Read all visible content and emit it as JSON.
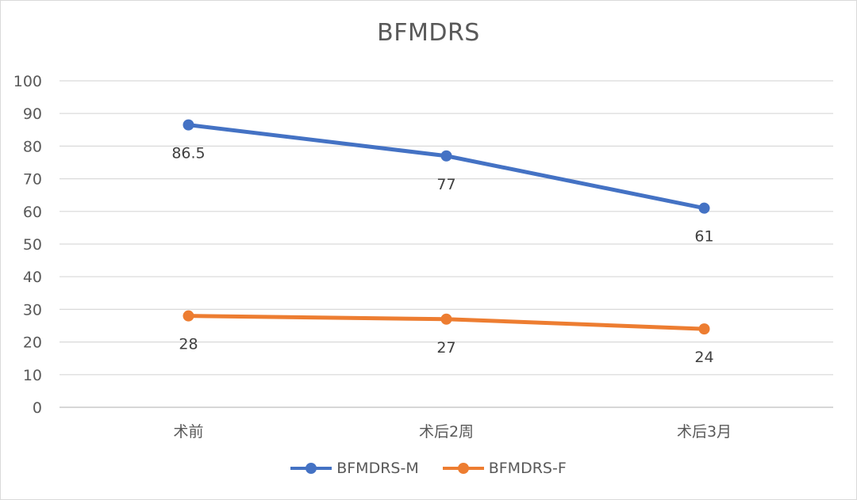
{
  "chart_data": {
    "type": "line",
    "title": "BFMDRS",
    "categories": [
      "术前",
      "术后2周",
      "术后3月"
    ],
    "ylim": [
      0,
      100
    ],
    "yticks": [
      0,
      10,
      20,
      30,
      40,
      50,
      60,
      70,
      80,
      90,
      100
    ],
    "grid": true,
    "legend_position": "bottom",
    "series": [
      {
        "name": "BFMDRS-M",
        "values": [
          86.5,
          77,
          61
        ],
        "color": "#4472c4",
        "labels": [
          "86.5",
          "77",
          "61"
        ]
      },
      {
        "name": "BFMDRS-F",
        "values": [
          28,
          27,
          24
        ],
        "color": "#ed7d31",
        "labels": [
          "28",
          "27",
          "24"
        ]
      }
    ]
  }
}
